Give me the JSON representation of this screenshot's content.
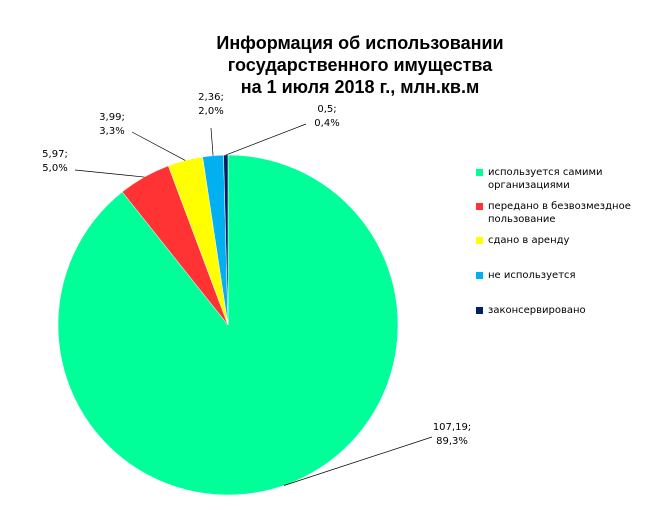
{
  "chart_data": {
    "type": "pie",
    "title_lines": [
      "Информация об использовании",
      "государственного имущества",
      "на 1 июля 2018 г., млн.кв.м"
    ],
    "slices": [
      {
        "name": "используется самими организациями",
        "value": 107.19,
        "percent": 89.3,
        "color": "#00ff99",
        "label_value": "107,19;",
        "label_percent": "89,3%"
      },
      {
        "name": "передано в безвозмездное пользование",
        "value": 5.97,
        "percent": 5.0,
        "color": "#ff3333",
        "label_value": "5,97;",
        "label_percent": "5,0%"
      },
      {
        "name": "сдано в аренду",
        "value": 3.99,
        "percent": 3.3,
        "color": "#ffff00",
        "label_value": "3,99;",
        "label_percent": "3,3%"
      },
      {
        "name": "не используется",
        "value": 2.36,
        "percent": 2.0,
        "color": "#00b0f0",
        "label_value": "2,36;",
        "label_percent": "2,0%"
      },
      {
        "name": "законсервировано",
        "value": 0.5,
        "percent": 0.4,
        "color": "#002060",
        "label_value": "0,5;",
        "label_percent": "0,4%"
      }
    ],
    "legend_position": "right",
    "legend_labels": [
      [
        "используется самими",
        "организациями"
      ],
      [
        "передано в безвозмездное",
        "пользование"
      ],
      [
        "сдано в аренду"
      ],
      [
        "не используется"
      ],
      [
        "законсервировано"
      ]
    ]
  }
}
